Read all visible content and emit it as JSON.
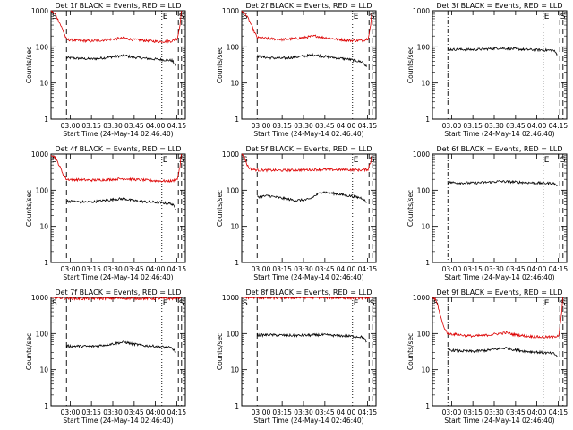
{
  "figure": {
    "ylabel": "Counts/sec",
    "xlabel": "Start Time (24-May-14 02:46:40)",
    "xticks": [
      "03:00",
      "03:15",
      "03:30",
      "03:45",
      "04:00",
      "04:15"
    ],
    "yticks": [
      "1",
      "10",
      "100",
      "1000"
    ],
    "colors": {
      "events": "#000000",
      "lld": "#dd0000"
    }
  },
  "chart_data": [
    {
      "type": "line",
      "title": "Det 1f BLACK = Events, RED = LLD",
      "markers": {
        "S": true,
        "E": true,
        "S2": true
      },
      "xlim": [
        0,
        100
      ],
      "ylim": [
        1,
        1000
      ],
      "log_y": true,
      "lines": {
        "dash": [
          11.5,
          94.8
        ],
        "dot": [
          82.5
        ],
        "dashdot": []
      },
      "series": [
        {
          "name": "Events",
          "x": [
            11.5,
            20,
            30,
            40,
            50,
            55,
            60,
            70,
            80,
            90,
            93
          ],
          "values": [
            50,
            48,
            46,
            50,
            55,
            58,
            52,
            48,
            45,
            42,
            30
          ]
        },
        {
          "name": "LLD",
          "x": [
            0,
            3,
            6,
            9,
            11.5,
            20,
            30,
            40,
            50,
            55,
            60,
            70,
            80,
            90,
            94,
            96,
            97
          ],
          "values": [
            1000,
            800,
            500,
            280,
            160,
            150,
            145,
            155,
            170,
            175,
            160,
            150,
            140,
            145,
            170,
            400,
            1000
          ]
        }
      ]
    },
    {
      "type": "line",
      "title": "Det 2f BLACK = Events, RED = LLD",
      "markers": {
        "S": true,
        "E": true,
        "S2": true
      },
      "xlim": [
        0,
        100
      ],
      "ylim": [
        1,
        1000
      ],
      "log_y": true,
      "lines": {
        "dash": [
          11.5,
          94.8
        ],
        "dot": [
          82.5
        ],
        "dashdot": []
      },
      "series": [
        {
          "name": "Events",
          "x": [
            11.5,
            20,
            30,
            40,
            50,
            55,
            60,
            70,
            80,
            90,
            93
          ],
          "values": [
            55,
            50,
            48,
            52,
            58,
            60,
            55,
            50,
            45,
            38,
            28
          ]
        },
        {
          "name": "LLD",
          "x": [
            0,
            3,
            6,
            9,
            11.5,
            20,
            30,
            40,
            50,
            55,
            60,
            70,
            80,
            90,
            94,
            96,
            97
          ],
          "values": [
            1000,
            800,
            500,
            280,
            180,
            170,
            160,
            170,
            190,
            200,
            185,
            165,
            150,
            150,
            170,
            400,
            1000
          ]
        }
      ]
    },
    {
      "type": "line",
      "title": "Det 3f BLACK = Events, RED = LLD",
      "markers": {
        "S": false,
        "E": true,
        "S2": true
      },
      "xlim": [
        0,
        100
      ],
      "ylim": [
        1,
        1000
      ],
      "log_y": true,
      "lines": {
        "dash": [
          94.8
        ],
        "dot": [
          82.5
        ],
        "dashdot": [
          11.5
        ]
      },
      "series": [
        {
          "name": "Events",
          "x": [
            11.5,
            20,
            30,
            40,
            50,
            60,
            70,
            80,
            90,
            93
          ],
          "values": [
            85,
            85,
            84,
            87,
            92,
            88,
            84,
            82,
            80,
            62
          ]
        }
      ]
    },
    {
      "type": "line",
      "title": "Det 4f BLACK = Events, RED = LLD",
      "markers": {
        "S": true,
        "E": true,
        "S2": true
      },
      "xlim": [
        0,
        100
      ],
      "ylim": [
        1,
        1000
      ],
      "log_y": true,
      "lines": {
        "dash": [
          11.5,
          94.8
        ],
        "dot": [
          82.5
        ],
        "dashdot": []
      },
      "series": [
        {
          "name": "Events",
          "x": [
            11.5,
            20,
            30,
            40,
            50,
            55,
            60,
            70,
            80,
            90,
            93
          ],
          "values": [
            50,
            48,
            47,
            52,
            57,
            58,
            52,
            48,
            46,
            42,
            30
          ]
        },
        {
          "name": "LLD",
          "x": [
            0,
            3,
            6,
            9,
            11.5,
            20,
            30,
            40,
            50,
            55,
            60,
            70,
            80,
            90,
            94,
            96,
            97
          ],
          "values": [
            1000,
            800,
            500,
            280,
            200,
            195,
            190,
            195,
            205,
            210,
            200,
            190,
            180,
            180,
            200,
            450,
            1000
          ]
        }
      ]
    },
    {
      "type": "line",
      "title": "Det 5f BLACK = Events, RED = LLD",
      "markers": {
        "S": true,
        "E": true,
        "S2": true
      },
      "xlim": [
        0,
        100
      ],
      "ylim": [
        1,
        1000
      ],
      "log_y": true,
      "lines": {
        "dash": [
          11.5,
          94.8
        ],
        "dot": [
          82.5
        ],
        "dashdot": []
      },
      "series": [
        {
          "name": "Events",
          "x": [
            11.5,
            20,
            30,
            40,
            50,
            55,
            60,
            70,
            80,
            90,
            93
          ],
          "values": [
            65,
            70,
            60,
            52,
            55,
            72,
            90,
            80,
            70,
            60,
            45
          ]
        },
        {
          "name": "LLD",
          "x": [
            0,
            2,
            4,
            6,
            8,
            11.5,
            20,
            30,
            40,
            50,
            60,
            70,
            80,
            90,
            94,
            96,
            97
          ],
          "values": [
            1000,
            800,
            500,
            400,
            380,
            360,
            358,
            355,
            360,
            370,
            375,
            370,
            368,
            360,
            380,
            600,
            1000
          ]
        }
      ]
    },
    {
      "type": "line",
      "title": "Det 6f BLACK = Events, RED = LLD",
      "markers": {
        "S": false,
        "E": true,
        "S2": true
      },
      "xlim": [
        0,
        100
      ],
      "ylim": [
        1,
        1000
      ],
      "log_y": true,
      "lines": {
        "dash": [
          94.8
        ],
        "dot": [
          82.5
        ],
        "dashdot": [
          11.5
        ]
      },
      "series": [
        {
          "name": "Events",
          "x": [
            11.5,
            20,
            30,
            40,
            50,
            60,
            70,
            80,
            90,
            93
          ],
          "values": [
            165,
            160,
            158,
            165,
            175,
            170,
            162,
            158,
            155,
            135
          ]
        }
      ]
    },
    {
      "type": "line",
      "title": "Det 7f BLACK = Events, RED = LLD",
      "markers": {
        "S": true,
        "E": true,
        "S2": true
      },
      "xlim": [
        0,
        100
      ],
      "ylim": [
        1,
        1000
      ],
      "log_y": true,
      "lines": {
        "dash": [
          11.5,
          94.8
        ],
        "dot": [
          82.5
        ],
        "dashdot": []
      },
      "series": [
        {
          "name": "Events",
          "x": [
            11.5,
            20,
            30,
            40,
            50,
            55,
            60,
            70,
            80,
            90,
            93
          ],
          "values": [
            45,
            45,
            44,
            48,
            55,
            58,
            52,
            46,
            44,
            40,
            30
          ]
        },
        {
          "name": "LLD",
          "x": [
            0,
            11.5,
            20,
            30,
            40,
            50,
            60,
            70,
            80,
            90,
            94,
            97
          ],
          "values": [
            1000,
            950,
            920,
            930,
            940,
            950,
            945,
            935,
            930,
            925,
            960,
            1000
          ]
        }
      ]
    },
    {
      "type": "line",
      "title": "Det 8f BLACK = Events, RED = LLD",
      "markers": {
        "S": true,
        "E": true,
        "S2": true
      },
      "xlim": [
        0,
        100
      ],
      "ylim": [
        1,
        1000
      ],
      "log_y": true,
      "lines": {
        "dash": [
          11.5,
          94.8
        ],
        "dot": [
          82.5
        ],
        "dashdot": []
      },
      "series": [
        {
          "name": "Events",
          "x": [
            11.5,
            20,
            30,
            40,
            50,
            60,
            70,
            80,
            90,
            93
          ],
          "values": [
            90,
            92,
            90,
            88,
            90,
            92,
            88,
            85,
            80,
            60
          ]
        },
        {
          "name": "LLD",
          "x": [
            0,
            11.5,
            20,
            30,
            40,
            50,
            60,
            70,
            80,
            90,
            94,
            97
          ],
          "values": [
            1000,
            980,
            960,
            970,
            980,
            990,
            985,
            975,
            970,
            965,
            990,
            1000
          ]
        }
      ]
    },
    {
      "type": "line",
      "title": "Det 9f BLACK = Events, RED = LLD",
      "markers": {
        "S": true,
        "E": true,
        "S2": true
      },
      "xlim": [
        0,
        100
      ],
      "ylim": [
        1,
        1000
      ],
      "log_y": true,
      "lines": {
        "dash": [
          94.8
        ],
        "dot": [
          82.5
        ],
        "dashdot": [
          11.5
        ]
      },
      "series": [
        {
          "name": "Events",
          "x": [
            11.5,
            20,
            30,
            40,
            50,
            55,
            60,
            70,
            80,
            90,
            93
          ],
          "values": [
            35,
            33,
            32,
            34,
            38,
            40,
            36,
            32,
            30,
            28,
            24
          ]
        },
        {
          "name": "LLD",
          "x": [
            0,
            2,
            4,
            6,
            8,
            10,
            11.5,
            20,
            30,
            40,
            50,
            55,
            60,
            70,
            80,
            90,
            94,
            96,
            97
          ],
          "values": [
            1000,
            900,
            600,
            300,
            170,
            120,
            100,
            92,
            85,
            90,
            100,
            105,
            95,
            85,
            80,
            80,
            90,
            300,
            1000
          ]
        }
      ]
    }
  ]
}
